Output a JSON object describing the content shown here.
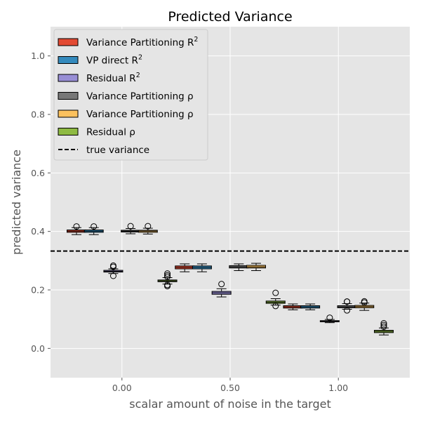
{
  "chart_data": {
    "type": "box",
    "title": "Predicted Variance",
    "xlabel": "scalar amount of noise in the target",
    "ylabel": "predicted variance",
    "xlim": [
      -0.33,
      1.33
    ],
    "ylim": [
      -0.1,
      1.1
    ],
    "x_ticks": [
      0.0,
      0.5,
      1.0
    ],
    "x_tick_labels": [
      "0.00",
      "0.50",
      "1.00"
    ],
    "y_ticks": [
      0.0,
      0.2,
      0.4,
      0.6,
      0.8,
      1.0
    ],
    "y_tick_labels": [
      "0.0",
      "0.2",
      "0.4",
      "0.6",
      "0.8",
      "1.0"
    ],
    "grid": true,
    "legend_position": "top-left",
    "background": "#E5E5E5",
    "true_variance": 0.333,
    "reference_line_label": "true variance",
    "series": [
      {
        "name": "Variance Partitioning R²",
        "legend": {
          "main": "Variance Partitioning R",
          "sup": "2"
        },
        "color": "#E24A33",
        "boxes": [
          {
            "x": -0.21,
            "whisker_low": 0.389,
            "q1": 0.397,
            "median": 0.401,
            "q3": 0.405,
            "whisker_high": 0.413,
            "fliers": [
              0.417
            ]
          },
          {
            "x": 0.29,
            "whisker_low": 0.262,
            "q1": 0.272,
            "median": 0.277,
            "q3": 0.282,
            "whisker_high": 0.289,
            "fliers": []
          },
          {
            "x": 0.79,
            "whisker_low": 0.132,
            "q1": 0.138,
            "median": 0.142,
            "q3": 0.146,
            "whisker_high": 0.152,
            "fliers": []
          }
        ]
      },
      {
        "name": "VP direct R²",
        "legend": {
          "main": "VP direct R",
          "sup": "2"
        },
        "color": "#348ABD",
        "boxes": [
          {
            "x": -0.13,
            "whisker_low": 0.389,
            "q1": 0.397,
            "median": 0.401,
            "q3": 0.405,
            "whisker_high": 0.413,
            "fliers": [
              0.417
            ]
          },
          {
            "x": 0.37,
            "whisker_low": 0.262,
            "q1": 0.272,
            "median": 0.277,
            "q3": 0.282,
            "whisker_high": 0.289,
            "fliers": []
          },
          {
            "x": 0.87,
            "whisker_low": 0.132,
            "q1": 0.138,
            "median": 0.142,
            "q3": 0.146,
            "whisker_high": 0.152,
            "fliers": []
          }
        ]
      },
      {
        "name": "Residual R²",
        "legend": {
          "main": "Residual R",
          "sup": "2"
        },
        "color": "#988ED5",
        "boxes": [
          {
            "x": -0.04,
            "whisker_low": 0.256,
            "q1": 0.261,
            "median": 0.264,
            "q3": 0.267,
            "whisker_high": 0.272,
            "fliers": [
              0.248,
              0.279,
              0.283
            ]
          },
          {
            "x": 0.46,
            "whisker_low": 0.176,
            "q1": 0.185,
            "median": 0.19,
            "q3": 0.195,
            "whisker_high": 0.204,
            "fliers": [
              0.22
            ]
          },
          {
            "x": 0.96,
            "whisker_low": 0.088,
            "q1": 0.091,
            "median": 0.093,
            "q3": 0.095,
            "whisker_high": 0.099,
            "fliers": [
              0.105
            ]
          }
        ]
      },
      {
        "name": "Variance Partitioning ρ",
        "legend": {
          "main": "Variance Partitioning ρ",
          "sup": ""
        },
        "color": "#777777",
        "boxes": [
          {
            "x": 0.04,
            "whisker_low": 0.392,
            "q1": 0.398,
            "median": 0.401,
            "q3": 0.404,
            "whisker_high": 0.41,
            "fliers": [
              0.418
            ]
          },
          {
            "x": 0.54,
            "whisker_low": 0.266,
            "q1": 0.275,
            "median": 0.279,
            "q3": 0.283,
            "whisker_high": 0.289,
            "fliers": []
          },
          {
            "x": 1.04,
            "whisker_low": 0.134,
            "q1": 0.139,
            "median": 0.142,
            "q3": 0.146,
            "whisker_high": 0.153,
            "fliers": [
              0.13,
              0.16,
              0.16
            ]
          }
        ]
      },
      {
        "name": "Variance Partitioning ρ",
        "legend": {
          "main": "Variance Partitioning ρ",
          "sup": ""
        },
        "color": "#FBC15E",
        "boxes": [
          {
            "x": 0.12,
            "whisker_low": 0.391,
            "q1": 0.397,
            "median": 0.401,
            "q3": 0.404,
            "whisker_high": 0.411,
            "fliers": [
              0.418
            ]
          },
          {
            "x": 0.62,
            "whisker_low": 0.266,
            "q1": 0.275,
            "median": 0.279,
            "q3": 0.284,
            "whisker_high": 0.291,
            "fliers": []
          },
          {
            "x": 1.12,
            "whisker_low": 0.13,
            "q1": 0.139,
            "median": 0.143,
            "q3": 0.147,
            "whisker_high": 0.155,
            "fliers": [
              0.157,
              0.161
            ]
          }
        ]
      },
      {
        "name": "Residual ρ",
        "legend": {
          "main": "Residual ρ",
          "sup": ""
        },
        "color": "#8EBA42",
        "boxes": [
          {
            "x": 0.21,
            "whisker_low": 0.22,
            "q1": 0.228,
            "median": 0.231,
            "q3": 0.234,
            "whisker_high": 0.242,
            "fliers": [
              0.213,
              0.217,
              0.245,
              0.25,
              0.256
            ]
          },
          {
            "x": 0.71,
            "whisker_low": 0.148,
            "q1": 0.154,
            "median": 0.158,
            "q3": 0.162,
            "whisker_high": 0.17,
            "fliers": [
              0.145,
              0.19
            ]
          },
          {
            "x": 1.21,
            "whisker_low": 0.046,
            "q1": 0.054,
            "median": 0.058,
            "q3": 0.062,
            "whisker_high": 0.07,
            "fliers": [
              0.074,
              0.08,
              0.086
            ]
          }
        ]
      }
    ]
  }
}
